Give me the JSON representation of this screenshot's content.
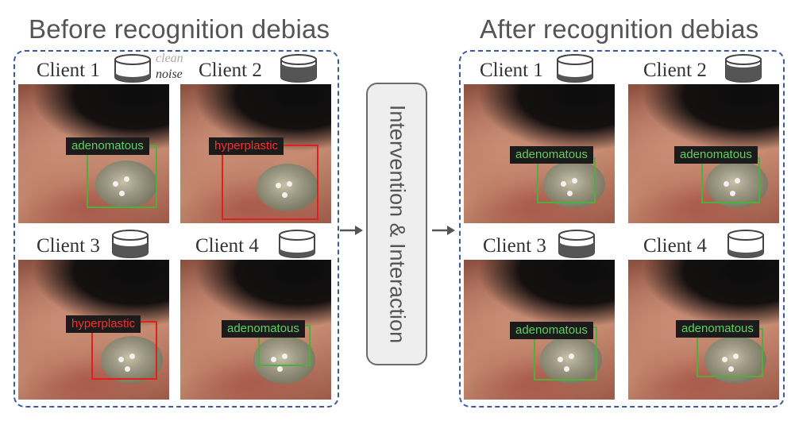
{
  "left_title": "Before recognition debias",
  "right_title": "After recognition debias",
  "center_label": "Intervention & Interaction",
  "legend": {
    "clean": "clean",
    "noise": "noise"
  },
  "clients": {
    "c1": "Client 1",
    "c2": "Client 2",
    "c3": "Client 3",
    "c4": "Client 4"
  },
  "before": {
    "c1_label": "adenomatous",
    "c2_label": "hyperplastic",
    "c3_label": "hyperplastic",
    "c4_label": "adenomatous"
  },
  "after": {
    "c1_label": "adenomatous",
    "c2_label": "adenomatous",
    "c3_label": "adenomatous",
    "c4_label": "adenomatous"
  },
  "colors": {
    "correct_label": "#5fd05f",
    "wrong_label": "#ff2d2d",
    "panel_border": "#3b5b9a",
    "clean_fill": "#ffffff",
    "noise_fill": "#555555"
  }
}
